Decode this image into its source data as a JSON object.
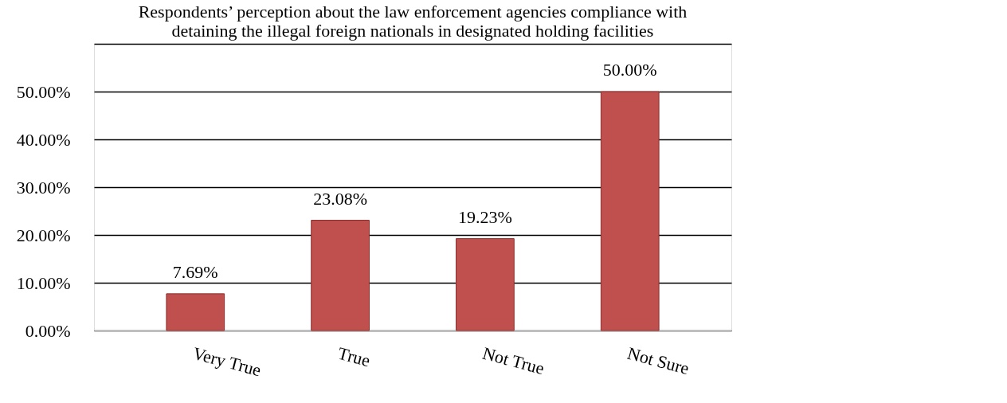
{
  "chart_data": {
    "type": "bar",
    "title": [
      "Respondents’ perception about the  law enforcement agencies compliance with",
      "detaining the illegal foreign nationals in designated holding facilities"
    ],
    "categories": [
      "Very True",
      "True",
      "Not True",
      "Not Sure"
    ],
    "values": [
      7.69,
      23.08,
      19.23,
      50.0
    ],
    "value_labels": [
      "7.69%",
      "23.08%",
      "19.23%",
      "50.00%"
    ],
    "color": "#c0504d",
    "ylim": [
      0,
      60
    ],
    "yticks": [
      {
        "value": 0,
        "label": "0.00%"
      },
      {
        "value": 10,
        "label": "10.00%"
      },
      {
        "value": 20,
        "label": "20.00%"
      },
      {
        "value": 30,
        "label": "30.00%"
      },
      {
        "value": 40,
        "label": "40.00%"
      },
      {
        "value": 50,
        "label": "50.00%"
      },
      {
        "value": 60,
        "label": null
      }
    ],
    "grid": "y"
  }
}
